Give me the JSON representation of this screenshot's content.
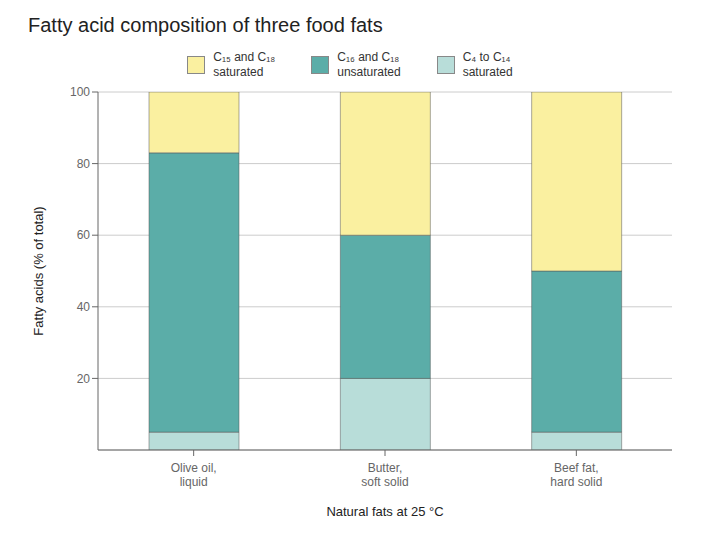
{
  "chart_data": {
    "type": "bar",
    "title": "Fatty acid composition of three food fats",
    "categories": [
      "Olive oil,\nliquid",
      "Butter,\nsoft solid",
      "Beef fat,\nhard solid"
    ],
    "xlabel": "Natural fats at 25 °C",
    "ylabel": "Fatty acids (% of total)",
    "ylim": [
      0,
      100
    ],
    "yticks": [
      20,
      40,
      60,
      80,
      100
    ],
    "stacked": true,
    "grid": true,
    "legend": "top",
    "series": [
      {
        "name": "C₄ to C₁₄\nsaturated",
        "color": "#B8DDD9",
        "values": [
          5,
          20,
          5
        ]
      },
      {
        "name": "C₁₆ and C₁₈\nunsaturated",
        "color": "#5BADA8",
        "values": [
          78,
          40,
          45
        ]
      },
      {
        "name": "C₁₅ and C₁₈\nsaturated",
        "color": "#FAF0A0",
        "values": [
          17,
          40,
          50
        ]
      }
    ]
  }
}
